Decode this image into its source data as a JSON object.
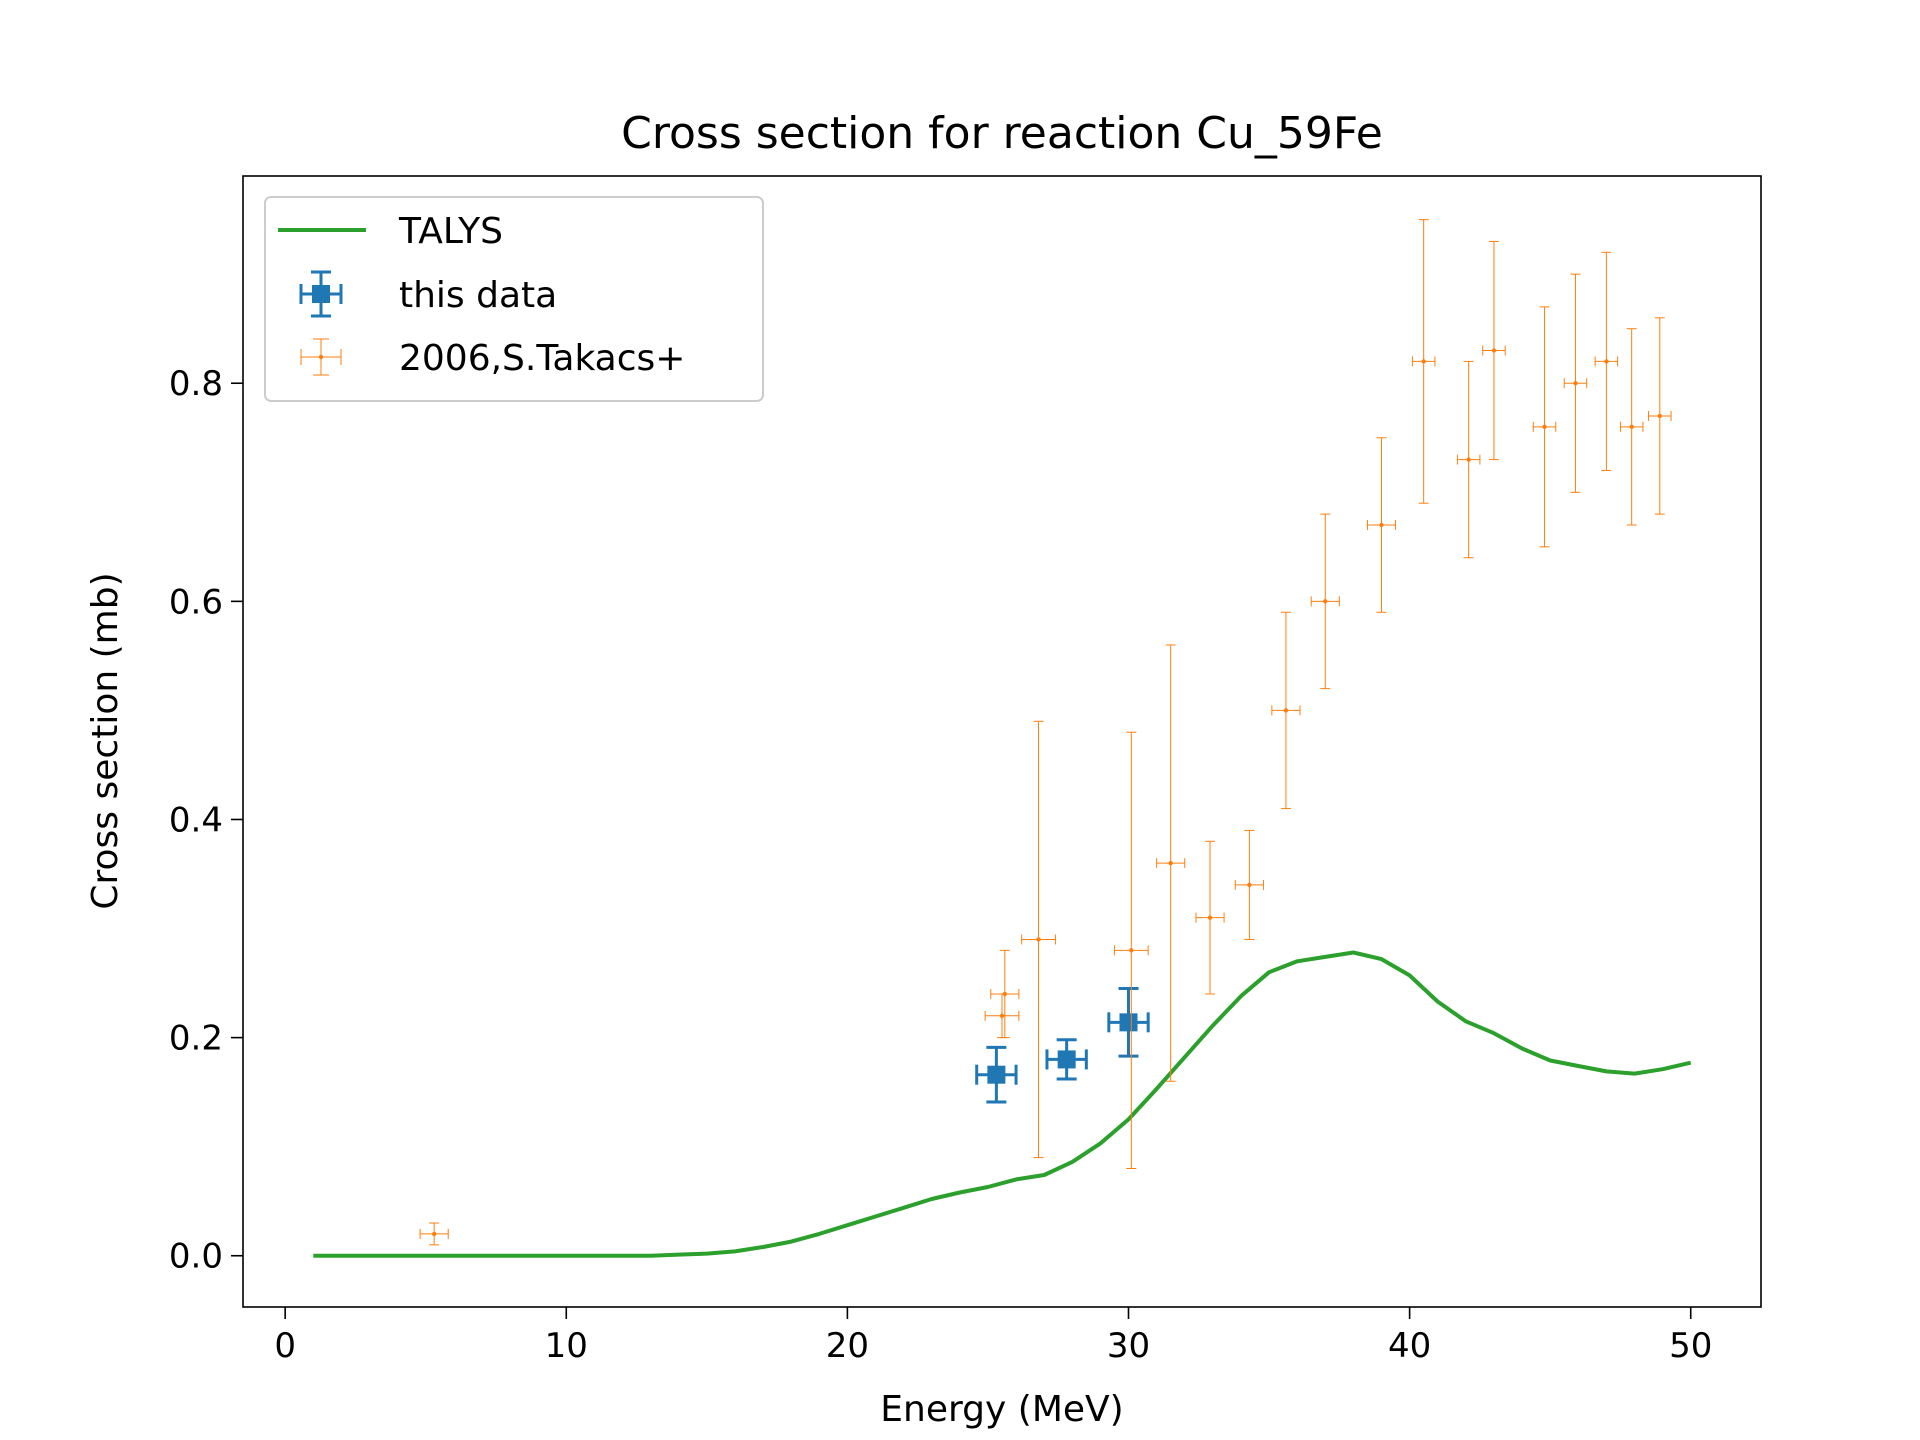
{
  "chart_data": {
    "type": "scatter",
    "title": "Cross section for reaction Cu_59Fe",
    "xlabel": "Energy (MeV)",
    "ylabel": "Cross section (mb)",
    "xlim": [
      -1.5,
      52.5
    ],
    "ylim": [
      -0.047,
      0.99
    ],
    "xticks": [
      0,
      10,
      20,
      30,
      40,
      50
    ],
    "yticks": [
      0.0,
      0.2,
      0.4,
      0.6,
      0.8
    ],
    "xtick_labels": [
      "0",
      "10",
      "20",
      "30",
      "40",
      "50"
    ],
    "ytick_labels": [
      "0.0",
      "0.2",
      "0.4",
      "0.6",
      "0.8"
    ],
    "grid": false,
    "legend_position": "top-left",
    "series": [
      {
        "name": "TALYS",
        "kind": "line",
        "color": "#2ca02c",
        "x": [
          1,
          2,
          3,
          4,
          5,
          6,
          7,
          8,
          9,
          10,
          11,
          12,
          13,
          14,
          15,
          16,
          17,
          18,
          19,
          20,
          21,
          22,
          23,
          24,
          25,
          26,
          27,
          28,
          29,
          30,
          31,
          32,
          33,
          34,
          35,
          36,
          37,
          38,
          39,
          40,
          41,
          42,
          43,
          44,
          45,
          46,
          47,
          48,
          49,
          50
        ],
        "y": [
          0,
          0,
          0,
          0,
          0,
          0,
          0,
          0,
          0,
          0,
          0,
          0,
          0,
          0.001,
          0.002,
          0.004,
          0.008,
          0.013,
          0.02,
          0.028,
          0.036,
          0.044,
          0.052,
          0.058,
          0.063,
          0.07,
          0.074,
          0.086,
          0.103,
          0.125,
          0.153,
          0.182,
          0.211,
          0.238,
          0.26,
          0.27,
          0.274,
          0.278,
          0.272,
          0.257,
          0.233,
          0.215,
          0.204,
          0.19,
          0.179,
          0.174,
          0.169,
          0.167,
          0.171,
          0.177
        ]
      },
      {
        "name": "this data",
        "kind": "errorbar",
        "color": "#1f77b4",
        "x": [
          25.3,
          27.8,
          30.0
        ],
        "y": [
          0.166,
          0.18,
          0.214
        ],
        "xerr": [
          0.7,
          0.7,
          0.7
        ],
        "yerr": [
          0.025,
          0.018,
          0.031
        ]
      },
      {
        "name": "2006,S.Takacs+",
        "kind": "errorbar",
        "color": "#ff7f0e",
        "x": [
          5.3,
          25.5,
          25.6,
          26.8,
          30.1,
          31.5,
          32.9,
          34.3,
          35.6,
          37.0,
          39.0,
          40.5,
          42.1,
          43.0,
          44.8,
          45.9,
          47.0,
          47.9,
          48.9
        ],
        "y": [
          0.02,
          0.22,
          0.24,
          0.29,
          0.28,
          0.36,
          0.31,
          0.34,
          0.5,
          0.6,
          0.67,
          0.82,
          0.73,
          0.83,
          0.76,
          0.8,
          0.82,
          0.76,
          0.77
        ],
        "xerr": [
          0.5,
          0.6,
          0.5,
          0.6,
          0.6,
          0.5,
          0.5,
          0.5,
          0.5,
          0.5,
          0.5,
          0.4,
          0.4,
          0.4,
          0.4,
          0.4,
          0.4,
          0.4,
          0.4
        ],
        "yerr": [
          0.01,
          0.02,
          0.04,
          0.2,
          0.2,
          0.2,
          0.07,
          0.05,
          0.09,
          0.08,
          0.08,
          0.13,
          0.09,
          0.1,
          0.11,
          0.1,
          0.1,
          0.09,
          0.09
        ]
      }
    ]
  }
}
